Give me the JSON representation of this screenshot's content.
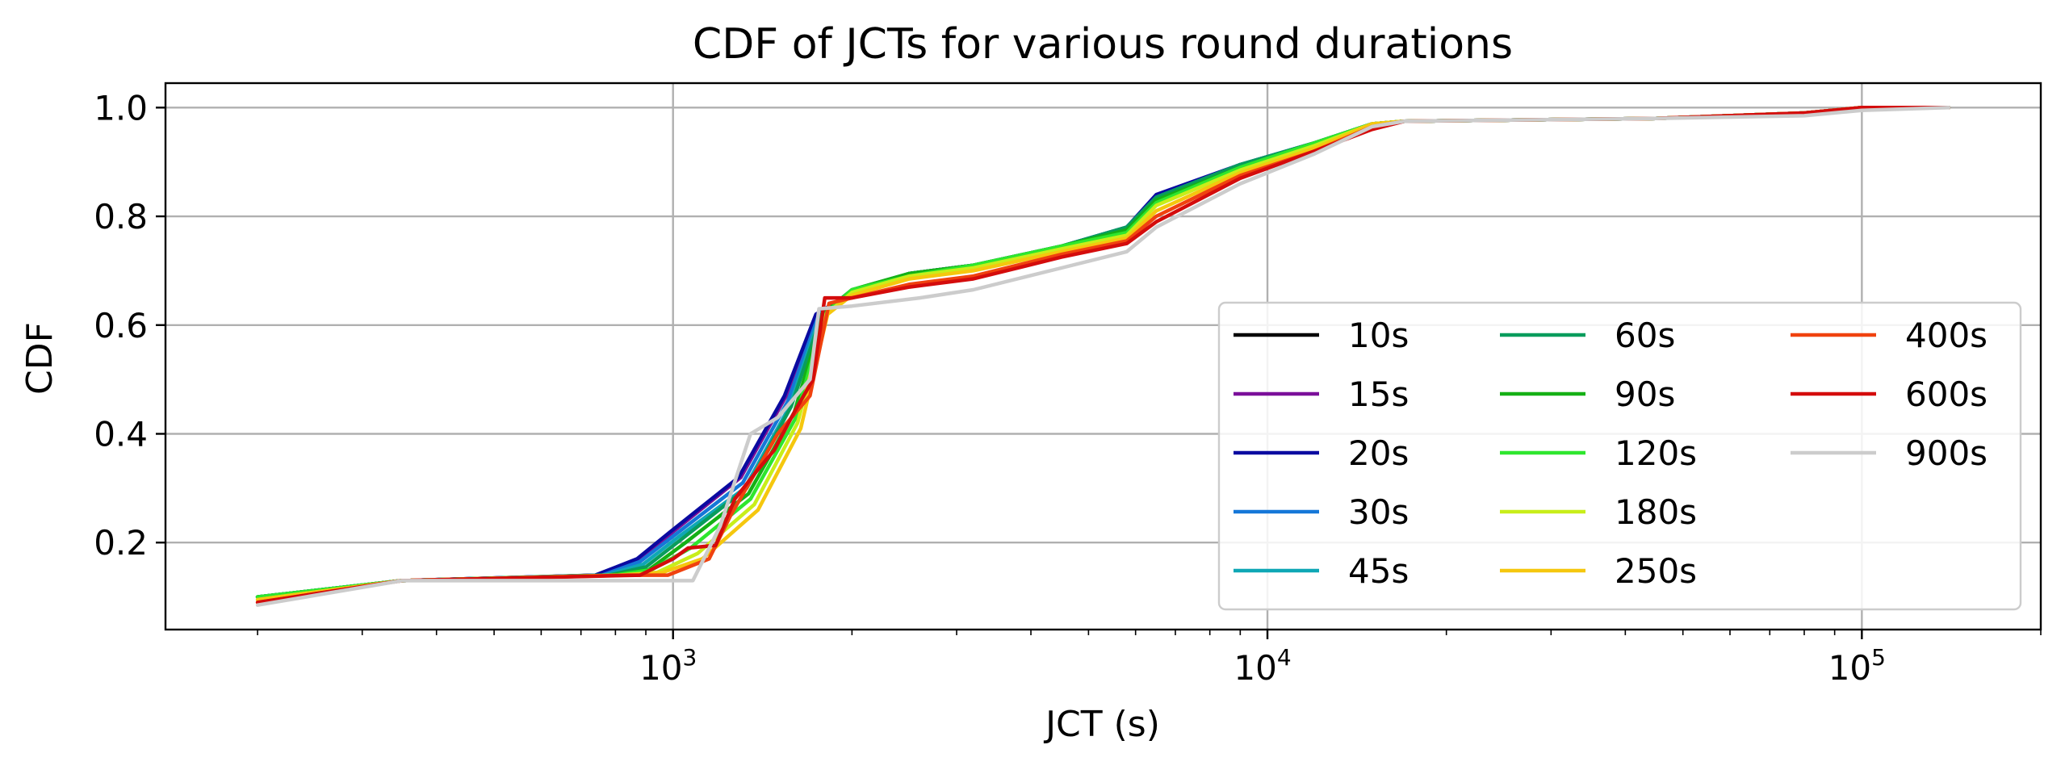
{
  "chart_data": {
    "type": "line",
    "title": "CDF of JCTs for various round durations",
    "xlabel": "JCT (s)",
    "ylabel": "CDF",
    "xscale": "log",
    "xlim": [
      140,
      200000
    ],
    "ylim": [
      0.04,
      1.045
    ],
    "xticks": [
      {
        "value": 1000,
        "base": "10",
        "exp": "3"
      },
      {
        "value": 10000,
        "base": "10",
        "exp": "4"
      },
      {
        "value": 100000,
        "base": "10",
        "exp": "5"
      }
    ],
    "yticks": [
      {
        "value": 0.2,
        "label": "0.2"
      },
      {
        "value": 0.4,
        "label": "0.4"
      },
      {
        "value": 0.6,
        "label": "0.6"
      },
      {
        "value": 0.8,
        "label": "0.8"
      },
      {
        "value": 1.0,
        "label": "1.0"
      }
    ],
    "grid": true,
    "legend": {
      "position": "lower-right",
      "columns": 3
    },
    "series": [
      {
        "name": "10s",
        "color": "#000000",
        "points": [
          [
            200,
            0.1
          ],
          [
            350,
            0.13
          ],
          [
            750,
            0.14
          ],
          [
            880,
            0.17
          ],
          [
            1000,
            0.22
          ],
          [
            1300,
            0.32
          ],
          [
            1550,
            0.47
          ],
          [
            1750,
            0.62
          ],
          [
            2000,
            0.66
          ],
          [
            2500,
            0.695
          ],
          [
            3200,
            0.71
          ],
          [
            4500,
            0.745
          ],
          [
            5800,
            0.78
          ],
          [
            6500,
            0.835
          ],
          [
            9000,
            0.895
          ],
          [
            12000,
            0.935
          ],
          [
            15000,
            0.97
          ],
          [
            17000,
            0.975
          ],
          [
            45000,
            0.98
          ],
          [
            80000,
            0.99
          ],
          [
            100000,
            1.0
          ],
          [
            140000,
            1.0
          ]
        ]
      },
      {
        "name": "15s",
        "color": "#7b0f9a",
        "points": [
          [
            200,
            0.1
          ],
          [
            350,
            0.13
          ],
          [
            750,
            0.14
          ],
          [
            880,
            0.17
          ],
          [
            1000,
            0.22
          ],
          [
            1300,
            0.32
          ],
          [
            1550,
            0.47
          ],
          [
            1750,
            0.62
          ],
          [
            2000,
            0.66
          ],
          [
            2500,
            0.695
          ],
          [
            3200,
            0.71
          ],
          [
            4500,
            0.745
          ],
          [
            5800,
            0.78
          ],
          [
            6500,
            0.835
          ],
          [
            9000,
            0.895
          ],
          [
            12000,
            0.935
          ],
          [
            15000,
            0.97
          ],
          [
            17000,
            0.975
          ],
          [
            45000,
            0.98
          ],
          [
            80000,
            0.99
          ],
          [
            100000,
            1.0
          ],
          [
            140000,
            1.0
          ]
        ]
      },
      {
        "name": "20s",
        "color": "#0a0aa0",
        "points": [
          [
            200,
            0.1
          ],
          [
            350,
            0.13
          ],
          [
            740,
            0.14
          ],
          [
            870,
            0.17
          ],
          [
            990,
            0.22
          ],
          [
            1290,
            0.32
          ],
          [
            1540,
            0.47
          ],
          [
            1740,
            0.62
          ],
          [
            2000,
            0.66
          ],
          [
            2500,
            0.695
          ],
          [
            3200,
            0.71
          ],
          [
            4500,
            0.745
          ],
          [
            5800,
            0.78
          ],
          [
            6500,
            0.84
          ],
          [
            9000,
            0.895
          ],
          [
            12000,
            0.935
          ],
          [
            15000,
            0.97
          ],
          [
            17000,
            0.975
          ],
          [
            45000,
            0.98
          ],
          [
            80000,
            0.99
          ],
          [
            100000,
            1.0
          ],
          [
            140000,
            1.0
          ]
        ]
      },
      {
        "name": "30s",
        "color": "#1577d8",
        "points": [
          [
            200,
            0.1
          ],
          [
            350,
            0.13
          ],
          [
            760,
            0.14
          ],
          [
            880,
            0.165
          ],
          [
            1010,
            0.215
          ],
          [
            1310,
            0.31
          ],
          [
            1560,
            0.46
          ],
          [
            1760,
            0.62
          ],
          [
            2000,
            0.66
          ],
          [
            2500,
            0.695
          ],
          [
            3200,
            0.71
          ],
          [
            4500,
            0.745
          ],
          [
            5800,
            0.78
          ],
          [
            6500,
            0.835
          ],
          [
            9000,
            0.895
          ],
          [
            12000,
            0.935
          ],
          [
            15000,
            0.97
          ],
          [
            17000,
            0.975
          ],
          [
            45000,
            0.98
          ],
          [
            80000,
            0.99
          ],
          [
            100000,
            1.0
          ],
          [
            140000,
            1.0
          ]
        ]
      },
      {
        "name": "45s",
        "color": "#0fa7b5",
        "points": [
          [
            200,
            0.1
          ],
          [
            350,
            0.13
          ],
          [
            770,
            0.14
          ],
          [
            890,
            0.16
          ],
          [
            1020,
            0.21
          ],
          [
            1320,
            0.3
          ],
          [
            1570,
            0.45
          ],
          [
            1770,
            0.62
          ],
          [
            2000,
            0.66
          ],
          [
            2500,
            0.695
          ],
          [
            3200,
            0.71
          ],
          [
            4500,
            0.745
          ],
          [
            5800,
            0.78
          ],
          [
            6500,
            0.835
          ],
          [
            9000,
            0.895
          ],
          [
            12000,
            0.935
          ],
          [
            15000,
            0.97
          ],
          [
            17000,
            0.975
          ],
          [
            45000,
            0.98
          ],
          [
            80000,
            0.99
          ],
          [
            100000,
            1.0
          ],
          [
            140000,
            1.0
          ]
        ]
      },
      {
        "name": "60s",
        "color": "#099c5c",
        "points": [
          [
            200,
            0.1
          ],
          [
            350,
            0.13
          ],
          [
            780,
            0.14
          ],
          [
            900,
            0.155
          ],
          [
            1030,
            0.205
          ],
          [
            1330,
            0.3
          ],
          [
            1580,
            0.45
          ],
          [
            1780,
            0.62
          ],
          [
            2000,
            0.665
          ],
          [
            2500,
            0.695
          ],
          [
            3200,
            0.71
          ],
          [
            4500,
            0.745
          ],
          [
            5800,
            0.78
          ],
          [
            6500,
            0.835
          ],
          [
            9000,
            0.895
          ],
          [
            12000,
            0.935
          ],
          [
            15000,
            0.97
          ],
          [
            17000,
            0.975
          ],
          [
            45000,
            0.98
          ],
          [
            80000,
            0.99
          ],
          [
            100000,
            1.0
          ],
          [
            140000,
            1.0
          ]
        ]
      },
      {
        "name": "90s",
        "color": "#15b015",
        "points": [
          [
            200,
            0.1
          ],
          [
            350,
            0.13
          ],
          [
            790,
            0.14
          ],
          [
            910,
            0.15
          ],
          [
            1050,
            0.2
          ],
          [
            1340,
            0.29
          ],
          [
            1600,
            0.44
          ],
          [
            1790,
            0.62
          ],
          [
            2000,
            0.665
          ],
          [
            2500,
            0.695
          ],
          [
            3200,
            0.71
          ],
          [
            4500,
            0.745
          ],
          [
            5800,
            0.775
          ],
          [
            6500,
            0.83
          ],
          [
            9000,
            0.89
          ],
          [
            12000,
            0.935
          ],
          [
            15000,
            0.97
          ],
          [
            17000,
            0.975
          ],
          [
            45000,
            0.98
          ],
          [
            80000,
            0.99
          ],
          [
            100000,
            1.0
          ],
          [
            140000,
            1.0
          ]
        ]
      },
      {
        "name": "120s",
        "color": "#2ee62e",
        "points": [
          [
            200,
            0.1
          ],
          [
            350,
            0.13
          ],
          [
            800,
            0.14
          ],
          [
            920,
            0.15
          ],
          [
            1070,
            0.19
          ],
          [
            1350,
            0.28
          ],
          [
            1610,
            0.43
          ],
          [
            1800,
            0.62
          ],
          [
            2000,
            0.665
          ],
          [
            2500,
            0.69
          ],
          [
            3200,
            0.71
          ],
          [
            4500,
            0.745
          ],
          [
            5800,
            0.77
          ],
          [
            6500,
            0.825
          ],
          [
            9000,
            0.89
          ],
          [
            12000,
            0.935
          ],
          [
            15000,
            0.97
          ],
          [
            17000,
            0.975
          ],
          [
            45000,
            0.98
          ],
          [
            80000,
            0.99
          ],
          [
            100000,
            1.0
          ],
          [
            140000,
            1.0
          ]
        ]
      },
      {
        "name": "180s",
        "color": "#c8ee1a",
        "points": [
          [
            200,
            0.095
          ],
          [
            350,
            0.13
          ],
          [
            810,
            0.14
          ],
          [
            940,
            0.145
          ],
          [
            1100,
            0.18
          ],
          [
            1370,
            0.27
          ],
          [
            1620,
            0.42
          ],
          [
            1810,
            0.62
          ],
          [
            2000,
            0.66
          ],
          [
            2500,
            0.69
          ],
          [
            3200,
            0.705
          ],
          [
            4500,
            0.74
          ],
          [
            5800,
            0.765
          ],
          [
            6500,
            0.82
          ],
          [
            9000,
            0.885
          ],
          [
            12000,
            0.93
          ],
          [
            15000,
            0.97
          ],
          [
            17000,
            0.975
          ],
          [
            45000,
            0.98
          ],
          [
            80000,
            0.99
          ],
          [
            100000,
            1.0
          ],
          [
            140000,
            1.0
          ]
        ]
      },
      {
        "name": "250s",
        "color": "#f5c70e",
        "points": [
          [
            200,
            0.095
          ],
          [
            350,
            0.13
          ],
          [
            820,
            0.14
          ],
          [
            960,
            0.145
          ],
          [
            1120,
            0.17
          ],
          [
            1390,
            0.26
          ],
          [
            1640,
            0.41
          ],
          [
            1820,
            0.62
          ],
          [
            2000,
            0.655
          ],
          [
            2500,
            0.685
          ],
          [
            3200,
            0.7
          ],
          [
            4500,
            0.735
          ],
          [
            5800,
            0.76
          ],
          [
            6500,
            0.81
          ],
          [
            9000,
            0.88
          ],
          [
            12000,
            0.925
          ],
          [
            15000,
            0.97
          ],
          [
            17000,
            0.975
          ],
          [
            45000,
            0.98
          ],
          [
            80000,
            0.99
          ],
          [
            100000,
            1.0
          ],
          [
            140000,
            1.0
          ]
        ]
      },
      {
        "name": "400s",
        "color": "#f0420f",
        "points": [
          [
            200,
            0.09
          ],
          [
            350,
            0.13
          ],
          [
            840,
            0.14
          ],
          [
            980,
            0.14
          ],
          [
            1150,
            0.17
          ],
          [
            1250,
            0.25
          ],
          [
            1500,
            0.4
          ],
          [
            1700,
            0.47
          ],
          [
            1830,
            0.64
          ],
          [
            2000,
            0.65
          ],
          [
            2500,
            0.675
          ],
          [
            3200,
            0.69
          ],
          [
            4500,
            0.73
          ],
          [
            5800,
            0.755
          ],
          [
            6500,
            0.8
          ],
          [
            9000,
            0.875
          ],
          [
            12000,
            0.92
          ],
          [
            15000,
            0.965
          ],
          [
            17000,
            0.975
          ],
          [
            45000,
            0.98
          ],
          [
            80000,
            0.99
          ],
          [
            100000,
            1.0
          ],
          [
            140000,
            1.0
          ]
        ]
      },
      {
        "name": "600s",
        "color": "#d40c0c",
        "points": [
          [
            200,
            0.09
          ],
          [
            350,
            0.13
          ],
          [
            880,
            0.14
          ],
          [
            1000,
            0.17
          ],
          [
            1060,
            0.19
          ],
          [
            1180,
            0.195
          ],
          [
            1270,
            0.28
          ],
          [
            1380,
            0.33
          ],
          [
            1480,
            0.37
          ],
          [
            1600,
            0.44
          ],
          [
            1720,
            0.5
          ],
          [
            1800,
            0.65
          ],
          [
            2000,
            0.65
          ],
          [
            2500,
            0.67
          ],
          [
            3200,
            0.685
          ],
          [
            4500,
            0.725
          ],
          [
            5800,
            0.75
          ],
          [
            6500,
            0.79
          ],
          [
            9000,
            0.87
          ],
          [
            12000,
            0.92
          ],
          [
            15000,
            0.96
          ],
          [
            17000,
            0.975
          ],
          [
            45000,
            0.98
          ],
          [
            80000,
            0.99
          ],
          [
            100000,
            1.0
          ],
          [
            140000,
            1.0
          ]
        ]
      },
      {
        "name": "900s",
        "color": "#cccccc",
        "points": [
          [
            200,
            0.085
          ],
          [
            350,
            0.13
          ],
          [
            1080,
            0.13
          ],
          [
            1200,
            0.23
          ],
          [
            1350,
            0.4
          ],
          [
            1500,
            0.43
          ],
          [
            1700,
            0.5
          ],
          [
            1760,
            0.63
          ],
          [
            2000,
            0.635
          ],
          [
            2600,
            0.65
          ],
          [
            3200,
            0.665
          ],
          [
            4500,
            0.705
          ],
          [
            5800,
            0.735
          ],
          [
            6500,
            0.78
          ],
          [
            9000,
            0.86
          ],
          [
            12000,
            0.915
          ],
          [
            15000,
            0.965
          ],
          [
            17000,
            0.975
          ],
          [
            45000,
            0.98
          ],
          [
            80000,
            0.985
          ],
          [
            100000,
            0.995
          ],
          [
            140000,
            1.0
          ]
        ]
      }
    ]
  }
}
